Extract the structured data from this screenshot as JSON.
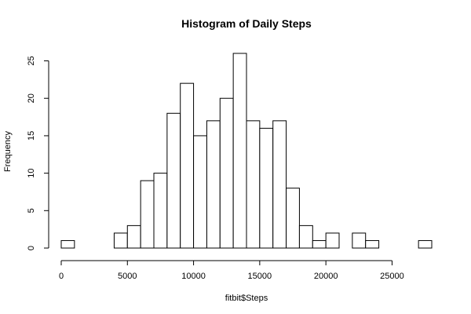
{
  "chart_data": {
    "type": "bar",
    "title": "Histogram of Daily Steps",
    "xlabel": "fitbit$Steps",
    "ylabel": "Frequency",
    "bin_width": 1000,
    "bins": [
      {
        "start": 0,
        "end": 1000,
        "count": 1
      },
      {
        "start": 1000,
        "end": 2000,
        "count": 0
      },
      {
        "start": 2000,
        "end": 3000,
        "count": 0
      },
      {
        "start": 3000,
        "end": 4000,
        "count": 0
      },
      {
        "start": 4000,
        "end": 5000,
        "count": 2
      },
      {
        "start": 5000,
        "end": 6000,
        "count": 3
      },
      {
        "start": 6000,
        "end": 7000,
        "count": 9
      },
      {
        "start": 7000,
        "end": 8000,
        "count": 10
      },
      {
        "start": 8000,
        "end": 9000,
        "count": 18
      },
      {
        "start": 9000,
        "end": 10000,
        "count": 22
      },
      {
        "start": 10000,
        "end": 11000,
        "count": 15
      },
      {
        "start": 11000,
        "end": 12000,
        "count": 17
      },
      {
        "start": 12000,
        "end": 13000,
        "count": 20
      },
      {
        "start": 13000,
        "end": 14000,
        "count": 26
      },
      {
        "start": 14000,
        "end": 15000,
        "count": 17
      },
      {
        "start": 15000,
        "end": 16000,
        "count": 16
      },
      {
        "start": 16000,
        "end": 17000,
        "count": 17
      },
      {
        "start": 17000,
        "end": 18000,
        "count": 8
      },
      {
        "start": 18000,
        "end": 19000,
        "count": 3
      },
      {
        "start": 19000,
        "end": 20000,
        "count": 1
      },
      {
        "start": 20000,
        "end": 21000,
        "count": 2
      },
      {
        "start": 21000,
        "end": 22000,
        "count": 0
      },
      {
        "start": 22000,
        "end": 23000,
        "count": 2
      },
      {
        "start": 23000,
        "end": 24000,
        "count": 1
      },
      {
        "start": 24000,
        "end": 25000,
        "count": 0
      },
      {
        "start": 25000,
        "end": 26000,
        "count": 0
      },
      {
        "start": 26000,
        "end": 27000,
        "count": 0
      },
      {
        "start": 27000,
        "end": 28000,
        "count": 1
      }
    ],
    "xlim": [
      0,
      28000
    ],
    "ylim": [
      0,
      26
    ],
    "x_ticks": [
      0,
      5000,
      10000,
      15000,
      20000,
      25000
    ],
    "x_tick_labels": [
      "0",
      "5000",
      "10000",
      "15000",
      "20000",
      "25000"
    ],
    "y_ticks": [
      0,
      5,
      10,
      15,
      20,
      25
    ],
    "y_tick_labels": [
      "0",
      "5",
      "10",
      "15",
      "20",
      "25"
    ],
    "grid": false,
    "legend": "none",
    "bar_fill": "#ffffff",
    "bar_stroke": "#000000"
  }
}
